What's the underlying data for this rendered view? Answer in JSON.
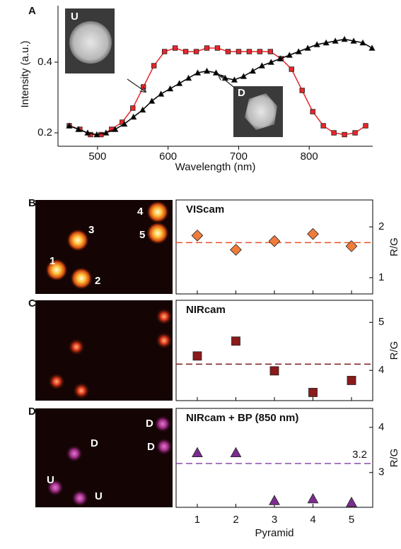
{
  "chart_data": [
    {
      "type": "line",
      "panel": "A",
      "xlabel": "Wavelength (nm)",
      "ylabel": "Intensity (a.u.)",
      "xlim": [
        444,
        890
      ],
      "ylim": [
        0.162,
        0.56
      ],
      "xticks": [
        500,
        600,
        700,
        800
      ],
      "yticks": [
        0.2,
        0.4
      ],
      "insets": [
        {
          "label": "U"
        },
        {
          "label": "D"
        }
      ],
      "series": [
        {
          "color": "#e8262a",
          "marker": "square",
          "x": [
            460,
            475,
            490,
            505,
            520,
            535,
            550,
            565,
            580,
            595,
            610,
            625,
            640,
            655,
            670,
            685,
            700,
            715,
            730,
            745,
            760,
            775,
            790,
            805,
            820,
            835,
            850,
            865,
            880
          ],
          "values": [
            0.22,
            0.21,
            0.195,
            0.195,
            0.21,
            0.23,
            0.27,
            0.33,
            0.39,
            0.43,
            0.44,
            0.43,
            0.43,
            0.44,
            0.44,
            0.43,
            0.43,
            0.43,
            0.43,
            0.43,
            0.41,
            0.38,
            0.32,
            0.26,
            0.22,
            0.2,
            0.195,
            0.2,
            0.22
          ]
        },
        {
          "color": "#000000",
          "marker": "triangle",
          "x": [
            460,
            473,
            486,
            499,
            512,
            525,
            538,
            551,
            564,
            577,
            590,
            603,
            616,
            629,
            642,
            655,
            668,
            681,
            694,
            707,
            720,
            733,
            746,
            759,
            772,
            785,
            798,
            811,
            824,
            837,
            850,
            863,
            876,
            889
          ],
          "values": [
            0.22,
            0.21,
            0.2,
            0.195,
            0.2,
            0.21,
            0.225,
            0.245,
            0.265,
            0.29,
            0.31,
            0.325,
            0.34,
            0.355,
            0.37,
            0.375,
            0.37,
            0.355,
            0.35,
            0.36,
            0.375,
            0.39,
            0.4,
            0.41,
            0.42,
            0.43,
            0.44,
            0.45,
            0.455,
            0.46,
            0.465,
            0.46,
            0.455,
            0.44
          ]
        }
      ]
    },
    {
      "type": "scatter",
      "panel": "B",
      "title": "VIScam",
      "ylabel": "R/G",
      "image_labels": [
        "1",
        "2",
        "3",
        "4",
        "5"
      ],
      "x": [
        1,
        2,
        3,
        4,
        5
      ],
      "values": [
        1.83,
        1.55,
        1.72,
        1.86,
        1.62
      ],
      "xlim": [
        0.45,
        5.55
      ],
      "xticks": [
        1,
        2,
        3,
        4,
        5
      ],
      "ylim": [
        0.68,
        2.53
      ],
      "yticks": [
        1,
        2
      ],
      "reference_line": 1.69,
      "color": "#f07c3a",
      "line_color": "#e8502a",
      "marker": "diamond"
    },
    {
      "type": "scatter",
      "panel": "C",
      "title": "NIRcam",
      "ylabel": "R/G",
      "x": [
        1,
        2,
        3,
        4,
        5
      ],
      "values": [
        4.3,
        4.61,
        3.99,
        3.54,
        3.79
      ],
      "xlim": [
        0.45,
        5.55
      ],
      "xticks": [
        1,
        2,
        3,
        4,
        5
      ],
      "ylim": [
        3.37,
        5.46
      ],
      "yticks": [
        4,
        5
      ],
      "reference_line": 4.13,
      "color": "#8b1a1a",
      "line_color": "#7a1a1a",
      "marker": "square"
    },
    {
      "type": "scatter",
      "panel": "D",
      "title": "NIRcam + BP (850 nm)",
      "ylabel": "R/G",
      "xlabel": "Pyramid",
      "image_labels": [
        "D",
        "D",
        "D",
        "U",
        "U"
      ],
      "x": [
        1,
        2,
        3,
        4,
        5
      ],
      "values": [
        3.44,
        3.44,
        2.38,
        2.42,
        2.34
      ],
      "xlim": [
        0.45,
        5.55
      ],
      "xticks": [
        1,
        2,
        3,
        4,
        5
      ],
      "show_xtick_labels": true,
      "ylim": [
        2.23,
        4.42
      ],
      "yticks": [
        3,
        4
      ],
      "reference_line": 3.2,
      "reference_label": true,
      "color": "#7b2d8e",
      "line_color": "#8a4aa8",
      "marker": "triangle"
    }
  ]
}
